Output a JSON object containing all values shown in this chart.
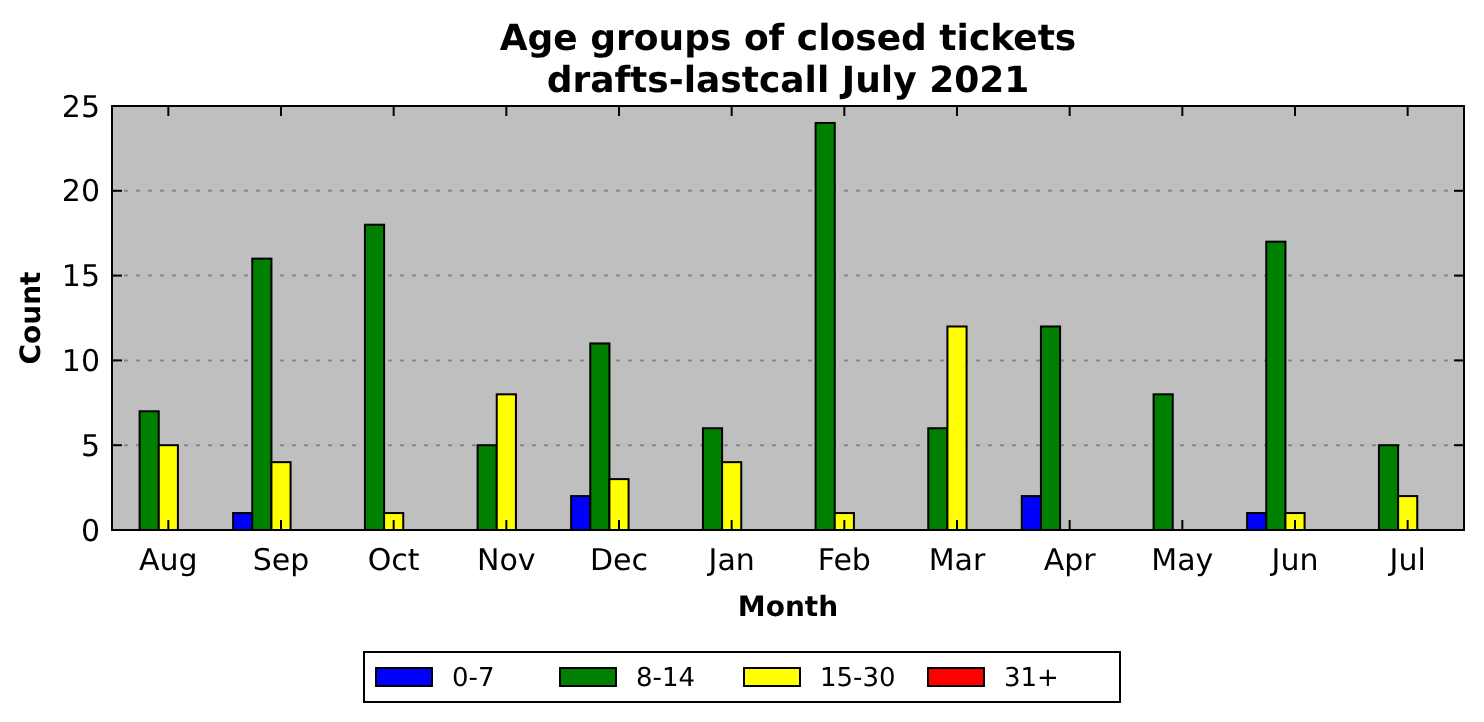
{
  "chart_data": {
    "type": "bar",
    "title": "Age groups of closed tickets\ndrafts-lastcall July 2021",
    "xlabel": "Month",
    "ylabel": "Count",
    "categories": [
      "Aug",
      "Sep",
      "Oct",
      "Nov",
      "Dec",
      "Jan",
      "Feb",
      "Mar",
      "Apr",
      "May",
      "Jun",
      "Jul"
    ],
    "series": [
      {
        "name": "0-7",
        "color": "#0000ff",
        "values": [
          0,
          1,
          0,
          0,
          2,
          0,
          0,
          0,
          2,
          0,
          1,
          0
        ]
      },
      {
        "name": "8-14",
        "color": "#008000",
        "values": [
          7,
          16,
          18,
          5,
          11,
          6,
          24,
          6,
          12,
          8,
          17,
          5
        ]
      },
      {
        "name": "15-30",
        "color": "#ffff00",
        "values": [
          5,
          4,
          1,
          8,
          3,
          4,
          1,
          12,
          0,
          0,
          1,
          2
        ]
      },
      {
        "name": "31+",
        "color": "#ff0000",
        "values": [
          0,
          0,
          0,
          0,
          0,
          0,
          0,
          0,
          0,
          0,
          0,
          0
        ]
      }
    ],
    "ylim": [
      0,
      25
    ],
    "yticks": [
      0,
      5,
      10,
      15,
      20,
      25
    ],
    "grid": "y",
    "legend": "bottom"
  }
}
